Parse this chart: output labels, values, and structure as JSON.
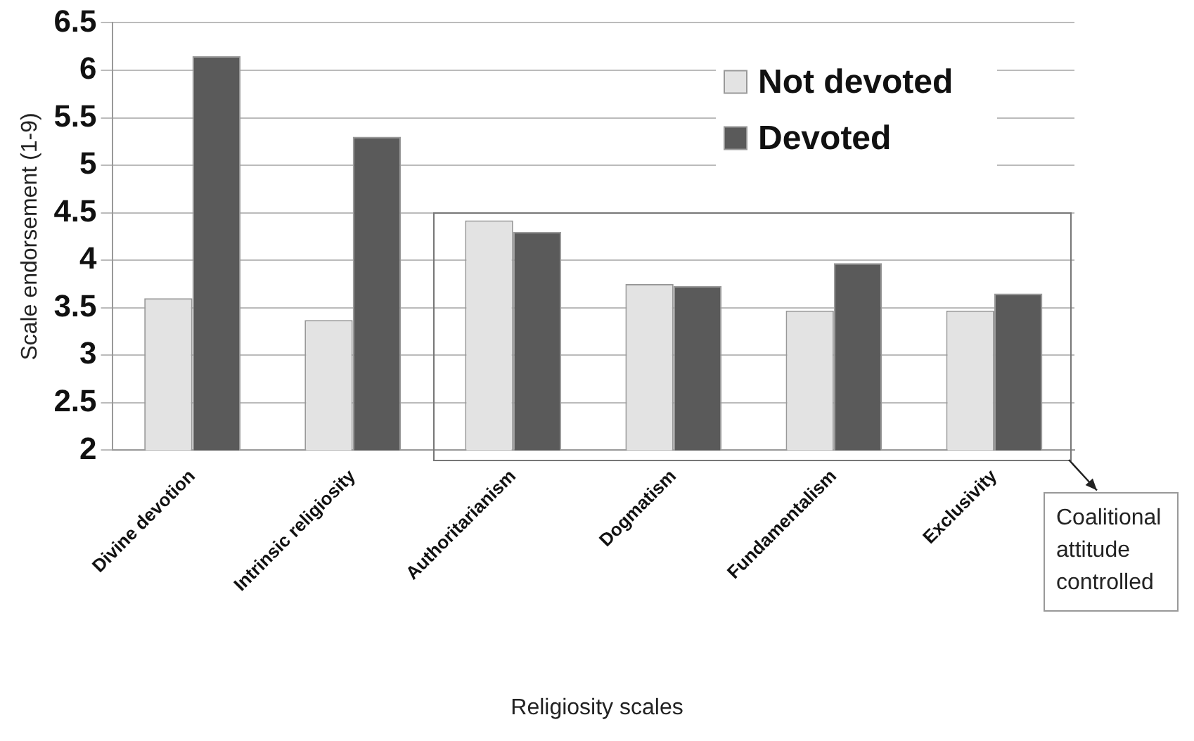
{
  "chart_data": {
    "type": "bar",
    "xlabel": "Religiosity scales",
    "ylabel": "Scale endorsement (1-9)",
    "categories": [
      "Divine devotion",
      "Intrinsic religiosity",
      "Authoritarianism",
      "Dogmatism",
      "Fundamentalism",
      "Exclusivity"
    ],
    "series": [
      {
        "name": "Not devoted",
        "color": "#e3e3e3",
        "values": [
          3.6,
          3.37,
          4.42,
          3.75,
          3.47,
          3.47
        ]
      },
      {
        "name": "Devoted",
        "color": "#5a5a5a",
        "values": [
          6.15,
          5.3,
          4.3,
          3.73,
          3.97,
          3.65
        ]
      }
    ],
    "ylim": [
      2,
      6.5
    ],
    "yticks": [
      2,
      2.5,
      3,
      3.5,
      4,
      4.5,
      5,
      5.5,
      6,
      6.5
    ],
    "grid": "y",
    "legend": "top right",
    "annotations": [
      "Coalitional attitude controlled"
    ]
  }
}
